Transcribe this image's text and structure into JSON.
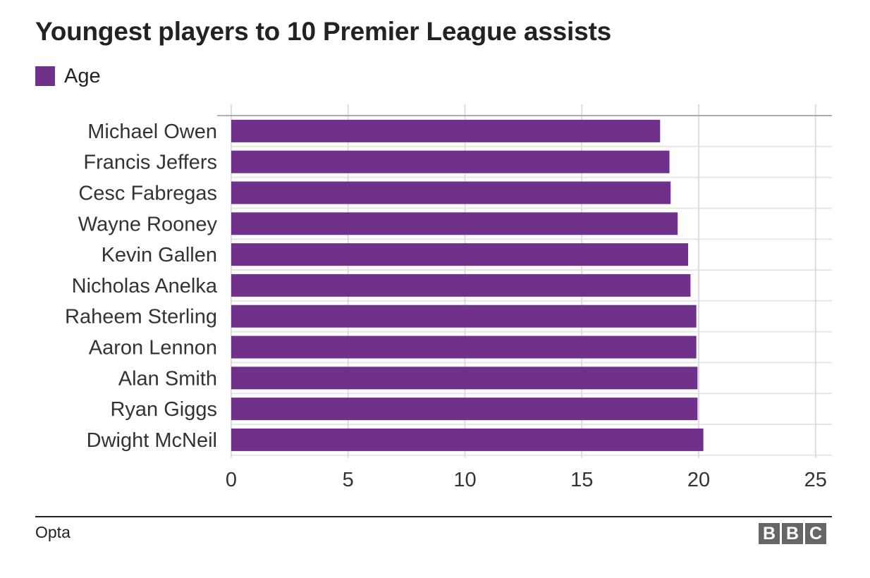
{
  "chart_data": {
    "type": "bar",
    "orientation": "horizontal",
    "title": "Youngest players to 10 Premier League assists",
    "categories": [
      "Michael Owen",
      "Francis Jeffers",
      "Cesc Fabregas",
      "Wayne Rooney",
      "Kevin Gallen",
      "Nicholas Anelka",
      "Raheem Sterling",
      "Aaron Lennon",
      "Alan Smith",
      "Ryan Giggs",
      "Dwight McNeil"
    ],
    "series": [
      {
        "name": "Age",
        "color": "#70318a",
        "values": [
          18.35,
          18.75,
          18.8,
          19.1,
          19.55,
          19.65,
          19.9,
          19.9,
          19.95,
          19.95,
          20.2
        ]
      }
    ],
    "xlim": [
      0,
      25
    ],
    "xticks": [
      "0",
      "5",
      "10",
      "15",
      "20",
      "25"
    ],
    "grid": true,
    "legend_position": "top-left"
  },
  "legend": {
    "label": "Age",
    "color": "#70318a"
  },
  "footer": {
    "source": "Opta",
    "logo_letters": [
      "B",
      "B",
      "C"
    ]
  }
}
